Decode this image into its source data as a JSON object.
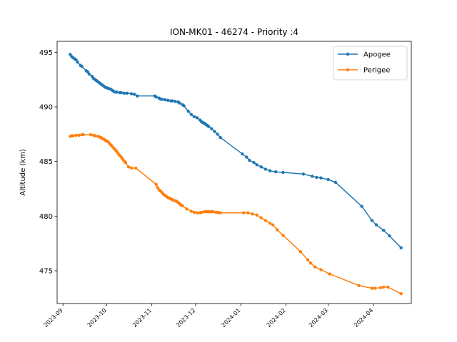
{
  "chart_data": {
    "type": "line",
    "title": "ION-MK01 - 46274 - Priority :4",
    "xlabel": "",
    "ylabel": "Altitude (km)",
    "xlim": [
      "2023-08-28",
      "2024-04-27"
    ],
    "ylim": [
      472.0,
      496.0
    ],
    "y_ticks": [
      475,
      480,
      485,
      490,
      495
    ],
    "x_ticks": [
      "2023-09",
      "2023-10",
      "2023-11",
      "2023-12",
      "2024-01",
      "2024-02",
      "2024-03",
      "2024-04"
    ],
    "x_tick_dates": [
      "2023-09-01",
      "2023-10-01",
      "2023-11-01",
      "2023-12-01",
      "2024-01-01",
      "2024-02-01",
      "2024-03-01",
      "2024-04-01"
    ],
    "legend_position": "upper right",
    "grid": false,
    "series": [
      {
        "name": "Apogee",
        "color": "#1f77b4",
        "marker": "circle",
        "points": [
          [
            "2023-09-06",
            494.8
          ],
          [
            "2023-09-07",
            494.6
          ],
          [
            "2023-09-08",
            494.5
          ],
          [
            "2023-09-09",
            494.4
          ],
          [
            "2023-09-10",
            494.3
          ],
          [
            "2023-09-11",
            494.1
          ],
          [
            "2023-09-13",
            493.8
          ],
          [
            "2023-09-14",
            493.7
          ],
          [
            "2023-09-17",
            493.3
          ],
          [
            "2023-09-18",
            493.2
          ],
          [
            "2023-09-19",
            493.0
          ],
          [
            "2023-09-21",
            492.8
          ],
          [
            "2023-09-22",
            492.6
          ],
          [
            "2023-09-23",
            492.5
          ],
          [
            "2023-09-24",
            492.4
          ],
          [
            "2023-09-25",
            492.3
          ],
          [
            "2023-09-26",
            492.2
          ],
          [
            "2023-09-27",
            492.1
          ],
          [
            "2023-09-28",
            492.0
          ],
          [
            "2023-09-29",
            491.9
          ],
          [
            "2023-09-30",
            491.8
          ],
          [
            "2023-10-01",
            491.75
          ],
          [
            "2023-10-02",
            491.7
          ],
          [
            "2023-10-03",
            491.65
          ],
          [
            "2023-10-04",
            491.6
          ],
          [
            "2023-10-05",
            491.5
          ],
          [
            "2023-10-06",
            491.4
          ],
          [
            "2023-10-07",
            491.35
          ],
          [
            "2023-10-08",
            491.35
          ],
          [
            "2023-10-10",
            491.3
          ],
          [
            "2023-10-11",
            491.3
          ],
          [
            "2023-10-13",
            491.25
          ],
          [
            "2023-10-15",
            491.25
          ],
          [
            "2023-10-18",
            491.2
          ],
          [
            "2023-10-20",
            491.15
          ],
          [
            "2023-10-22",
            491.0
          ],
          [
            "2023-11-03",
            491.0
          ],
          [
            "2023-11-04",
            490.9
          ],
          [
            "2023-11-06",
            490.8
          ],
          [
            "2023-11-07",
            490.7
          ],
          [
            "2023-11-08",
            490.7
          ],
          [
            "2023-11-10",
            490.65
          ],
          [
            "2023-11-12",
            490.6
          ],
          [
            "2023-11-14",
            490.55
          ],
          [
            "2023-11-15",
            490.55
          ],
          [
            "2023-11-17",
            490.5
          ],
          [
            "2023-11-19",
            490.45
          ],
          [
            "2023-11-20",
            490.35
          ],
          [
            "2023-11-22",
            490.2
          ],
          [
            "2023-11-23",
            490.1
          ],
          [
            "2023-11-26",
            489.6
          ],
          [
            "2023-11-28",
            489.3
          ],
          [
            "2023-11-30",
            489.1
          ],
          [
            "2023-12-02",
            489.0
          ],
          [
            "2023-12-04",
            488.8
          ],
          [
            "2023-12-05",
            488.65
          ],
          [
            "2023-12-06",
            488.55
          ],
          [
            "2023-12-07",
            488.5
          ],
          [
            "2023-12-08",
            488.4
          ],
          [
            "2023-12-09",
            488.3
          ],
          [
            "2023-12-10",
            488.2
          ],
          [
            "2023-12-12",
            488.0
          ],
          [
            "2023-12-14",
            487.75
          ],
          [
            "2023-12-16",
            487.5
          ],
          [
            "2023-12-18",
            487.2
          ],
          [
            "2024-01-02",
            485.7
          ],
          [
            "2024-01-05",
            485.4
          ],
          [
            "2024-01-07",
            485.1
          ],
          [
            "2024-01-10",
            484.9
          ],
          [
            "2024-01-12",
            484.7
          ],
          [
            "2024-01-15",
            484.5
          ],
          [
            "2024-01-18",
            484.3
          ],
          [
            "2024-01-21",
            484.15
          ],
          [
            "2024-01-25",
            484.05
          ],
          [
            "2024-01-30",
            484.0
          ],
          [
            "2024-02-13",
            483.85
          ],
          [
            "2024-02-19",
            483.65
          ],
          [
            "2024-02-22",
            483.55
          ],
          [
            "2024-02-25",
            483.5
          ],
          [
            "2024-03-01",
            483.35
          ],
          [
            "2024-03-06",
            483.1
          ],
          [
            "2024-03-24",
            480.9
          ],
          [
            "2024-03-31",
            479.6
          ],
          [
            "2024-04-03",
            479.2
          ],
          [
            "2024-04-08",
            478.7
          ],
          [
            "2024-04-12",
            478.2
          ],
          [
            "2024-04-20",
            477.1
          ]
        ]
      },
      {
        "name": "Perigee",
        "color": "#ff7f0e",
        "marker": "circle",
        "points": [
          [
            "2023-09-06",
            487.3
          ],
          [
            "2023-09-07",
            487.35
          ],
          [
            "2023-09-08",
            487.35
          ],
          [
            "2023-09-10",
            487.4
          ],
          [
            "2023-09-12",
            487.4
          ],
          [
            "2023-09-14",
            487.45
          ],
          [
            "2023-09-15",
            487.45
          ],
          [
            "2023-09-20",
            487.45
          ],
          [
            "2023-09-22",
            487.4
          ],
          [
            "2023-09-23",
            487.35
          ],
          [
            "2023-09-25",
            487.3
          ],
          [
            "2023-09-26",
            487.25
          ],
          [
            "2023-09-27",
            487.2
          ],
          [
            "2023-09-28",
            487.1
          ],
          [
            "2023-09-29",
            487.05
          ],
          [
            "2023-09-30",
            486.95
          ],
          [
            "2023-10-01",
            486.9
          ],
          [
            "2023-10-02",
            486.8
          ],
          [
            "2023-10-03",
            486.65
          ],
          [
            "2023-10-04",
            486.5
          ],
          [
            "2023-10-05",
            486.35
          ],
          [
            "2023-10-06",
            486.2
          ],
          [
            "2023-10-07",
            486.05
          ],
          [
            "2023-10-08",
            485.9
          ],
          [
            "2023-10-09",
            485.7
          ],
          [
            "2023-10-10",
            485.55
          ],
          [
            "2023-10-11",
            485.4
          ],
          [
            "2023-10-12",
            485.2
          ],
          [
            "2023-10-13",
            485.05
          ],
          [
            "2023-10-14",
            484.9
          ],
          [
            "2023-10-16",
            484.5
          ],
          [
            "2023-10-18",
            484.4
          ],
          [
            "2023-10-21",
            484.4
          ],
          [
            "2023-11-04",
            482.9
          ],
          [
            "2023-11-05",
            482.6
          ],
          [
            "2023-11-06",
            482.4
          ],
          [
            "2023-11-07",
            482.3
          ],
          [
            "2023-11-08",
            482.15
          ],
          [
            "2023-11-09",
            482.0
          ],
          [
            "2023-11-10",
            481.9
          ],
          [
            "2023-11-11",
            481.8
          ],
          [
            "2023-11-12",
            481.7
          ],
          [
            "2023-11-13",
            481.65
          ],
          [
            "2023-11-14",
            481.6
          ],
          [
            "2023-11-15",
            481.5
          ],
          [
            "2023-11-16",
            481.45
          ],
          [
            "2023-11-17",
            481.4
          ],
          [
            "2023-11-18",
            481.35
          ],
          [
            "2023-11-19",
            481.25
          ],
          [
            "2023-11-20",
            481.15
          ],
          [
            "2023-11-21",
            481.0
          ],
          [
            "2023-11-22",
            480.95
          ],
          [
            "2023-11-25",
            480.65
          ],
          [
            "2023-11-28",
            480.45
          ],
          [
            "2023-11-30",
            480.35
          ],
          [
            "2023-12-02",
            480.3
          ],
          [
            "2023-12-04",
            480.3
          ],
          [
            "2023-12-05",
            480.35
          ],
          [
            "2023-12-07",
            480.4
          ],
          [
            "2023-12-08",
            480.4
          ],
          [
            "2023-12-09",
            480.4
          ],
          [
            "2023-12-10",
            480.4
          ],
          [
            "2023-12-11",
            480.4
          ],
          [
            "2023-12-12",
            480.4
          ],
          [
            "2023-12-13",
            480.4
          ],
          [
            "2023-12-15",
            480.35
          ],
          [
            "2023-12-16",
            480.35
          ],
          [
            "2023-12-17",
            480.3
          ],
          [
            "2023-12-18",
            480.3
          ],
          [
            "2024-01-03",
            480.3
          ],
          [
            "2024-01-06",
            480.3
          ],
          [
            "2024-01-09",
            480.2
          ],
          [
            "2024-01-12",
            480.1
          ],
          [
            "2024-01-15",
            479.85
          ],
          [
            "2024-01-18",
            479.6
          ],
          [
            "2024-01-21",
            479.35
          ],
          [
            "2024-01-23",
            479.2
          ],
          [
            "2024-01-26",
            478.75
          ],
          [
            "2024-01-30",
            478.25
          ],
          [
            "2024-02-11",
            476.75
          ],
          [
            "2024-02-16",
            476.0
          ],
          [
            "2024-02-18",
            475.7
          ],
          [
            "2024-02-21",
            475.35
          ],
          [
            "2024-02-25",
            475.1
          ],
          [
            "2024-03-02",
            474.7
          ],
          [
            "2024-03-22",
            473.65
          ],
          [
            "2024-03-31",
            473.4
          ],
          [
            "2024-04-02",
            473.4
          ],
          [
            "2024-04-06",
            473.45
          ],
          [
            "2024-04-08",
            473.5
          ],
          [
            "2024-04-11",
            473.5
          ],
          [
            "2024-04-20",
            472.9
          ]
        ]
      }
    ]
  }
}
